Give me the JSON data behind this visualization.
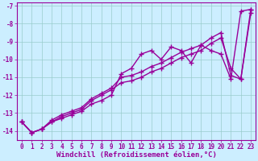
{
  "xlabel": "Windchill (Refroidissement éolien,°C)",
  "bg_color": "#cceeff",
  "line_color": "#990099",
  "grid_color": "#99cccc",
  "ylim": [
    -14.5,
    -6.8
  ],
  "xlim": [
    -0.5,
    23.5
  ],
  "yticks": [
    -14,
    -13,
    -12,
    -11,
    -10,
    -9,
    -8,
    -7
  ],
  "xticks": [
    0,
    1,
    2,
    3,
    4,
    5,
    6,
    7,
    8,
    9,
    10,
    11,
    12,
    13,
    14,
    15,
    16,
    17,
    18,
    19,
    20,
    21,
    22,
    23
  ],
  "series1_x": [
    0,
    1,
    2,
    3,
    4,
    5,
    6,
    7,
    8,
    9,
    10,
    11,
    12,
    13,
    14,
    15,
    16,
    17,
    18,
    19,
    20,
    21,
    22,
    23
  ],
  "series1_y": [
    -13.5,
    -14.1,
    -13.9,
    -13.5,
    -13.3,
    -13.1,
    -12.9,
    -12.5,
    -12.3,
    -12.0,
    -10.8,
    -10.5,
    -9.7,
    -9.5,
    -10.0,
    -9.3,
    -9.5,
    -10.2,
    -9.2,
    -9.5,
    -9.7,
    -11.1,
    -7.3,
    -7.2
  ],
  "series2_x": [
    0,
    1,
    2,
    3,
    4,
    5,
    6,
    7,
    8,
    9,
    10,
    11,
    12,
    13,
    14,
    15,
    16,
    17,
    18,
    19,
    20,
    21,
    22,
    23
  ],
  "series2_y": [
    -13.5,
    -14.1,
    -13.9,
    -13.5,
    -13.2,
    -13.0,
    -12.8,
    -12.3,
    -12.0,
    -11.7,
    -11.3,
    -11.2,
    -11.0,
    -10.7,
    -10.5,
    -10.2,
    -9.9,
    -9.7,
    -9.5,
    -9.1,
    -8.8,
    -10.5,
    -11.1,
    -7.4
  ],
  "series3_x": [
    0,
    1,
    2,
    3,
    4,
    5,
    6,
    7,
    8,
    9,
    10,
    11,
    12,
    13,
    14,
    15,
    16,
    17,
    18,
    19,
    20,
    21,
    22,
    23
  ],
  "series3_y": [
    -13.5,
    -14.1,
    -13.9,
    -13.4,
    -13.1,
    -12.9,
    -12.7,
    -12.2,
    -11.9,
    -11.6,
    -11.0,
    -10.9,
    -10.7,
    -10.4,
    -10.2,
    -9.9,
    -9.6,
    -9.4,
    -9.2,
    -8.8,
    -8.5,
    -10.9,
    -11.1,
    -7.2
  ],
  "marker": "+",
  "markersize": 4,
  "linewidth": 1.0,
  "tick_fontsize": 5.5,
  "label_fontsize": 6.5
}
